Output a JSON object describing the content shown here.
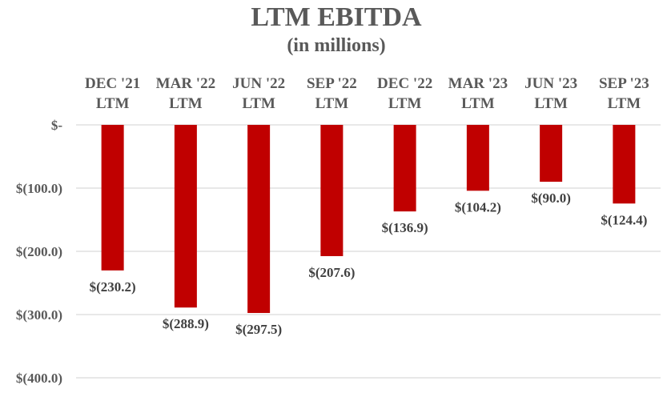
{
  "chart_data": {
    "type": "bar",
    "title": "LTM EBITDA",
    "subtitle": "(in millions)",
    "categories": [
      [
        "DEC '21",
        "LTM"
      ],
      [
        "MAR '22",
        "LTM"
      ],
      [
        "JUN '22",
        "LTM"
      ],
      [
        "SEP '22",
        "LTM"
      ],
      [
        "DEC '22",
        "LTM"
      ],
      [
        "MAR '23",
        "LTM"
      ],
      [
        "JUN '23",
        "LTM"
      ],
      [
        "SEP '23",
        "LTM"
      ]
    ],
    "values": [
      -230.2,
      -288.9,
      -297.5,
      -207.6,
      -136.9,
      -104.2,
      -90.0,
      -124.4
    ],
    "data_labels": [
      "$(230.2)",
      "$(288.9)",
      "$(297.5)",
      "$(207.6)",
      "$(136.9)",
      "$(104.2)",
      "$(90.0)",
      "$(124.4)"
    ],
    "yticks": [
      0,
      -100,
      -200,
      -300,
      -400
    ],
    "ytick_labels": [
      "$-",
      "$(100.0)",
      "$(200.0)",
      "$(300.0)",
      "$(400.0)"
    ],
    "ylim": [
      -400,
      0
    ],
    "grid": true,
    "bar_color": "#c00000",
    "text_color": "#595959"
  }
}
